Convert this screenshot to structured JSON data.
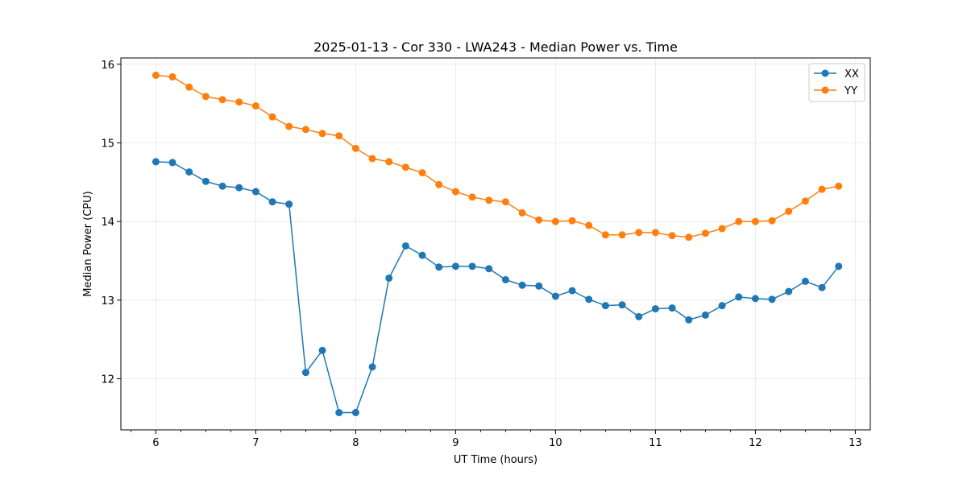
{
  "chart_data": {
    "type": "line",
    "title": "2025-01-13 - Cor 330 - LWA243 - Median Power vs. Time",
    "xlabel": "UT Time (hours)",
    "ylabel": "Median Power (CPU)",
    "xlim": [
      5.65,
      13.15
    ],
    "ylim": [
      11.35,
      16.08
    ],
    "xticks": [
      6,
      7,
      8,
      9,
      10,
      11,
      12,
      13
    ],
    "yticks": [
      12,
      13,
      14,
      15,
      16
    ],
    "grid": true,
    "legend_position": "top-right",
    "x": [
      6.0,
      6.1667,
      6.3333,
      6.5,
      6.6667,
      6.8333,
      7.0,
      7.1667,
      7.3333,
      7.5,
      7.6667,
      7.8333,
      8.0,
      8.1667,
      8.3333,
      8.5,
      8.6667,
      8.8333,
      9.0,
      9.1667,
      9.3333,
      9.5,
      9.6667,
      9.8333,
      10.0,
      10.1667,
      10.3333,
      10.5,
      10.6667,
      10.8333,
      11.0,
      11.1667,
      11.3333,
      11.5,
      11.6667,
      11.8333,
      12.0,
      12.1667,
      12.3333,
      12.5,
      12.6667,
      12.8333
    ],
    "series": [
      {
        "name": "XX",
        "color": "#1f77b4",
        "values": [
          14.76,
          14.75,
          14.63,
          14.51,
          14.45,
          14.43,
          14.38,
          14.25,
          14.22,
          12.08,
          12.36,
          11.57,
          11.57,
          12.15,
          13.28,
          13.69,
          13.57,
          13.42,
          13.43,
          13.43,
          13.4,
          13.26,
          13.19,
          13.18,
          13.05,
          13.12,
          13.01,
          12.93,
          12.94,
          12.79,
          12.89,
          12.9,
          12.75,
          12.81,
          12.93,
          13.04,
          13.02,
          13.01,
          13.11,
          13.24,
          13.16,
          13.43
        ]
      },
      {
        "name": "YY",
        "color": "#ff7f0e",
        "values": [
          15.86,
          15.84,
          15.71,
          15.59,
          15.55,
          15.52,
          15.47,
          15.33,
          15.21,
          15.17,
          15.12,
          15.09,
          14.93,
          14.8,
          14.76,
          14.69,
          14.62,
          14.47,
          14.38,
          14.31,
          14.27,
          14.25,
          14.11,
          14.02,
          14.0,
          14.01,
          13.95,
          13.83,
          13.83,
          13.86,
          13.86,
          13.82,
          13.8,
          13.85,
          13.91,
          14.0,
          14.0,
          14.01,
          14.13,
          14.26,
          14.41,
          14.45
        ]
      }
    ]
  }
}
